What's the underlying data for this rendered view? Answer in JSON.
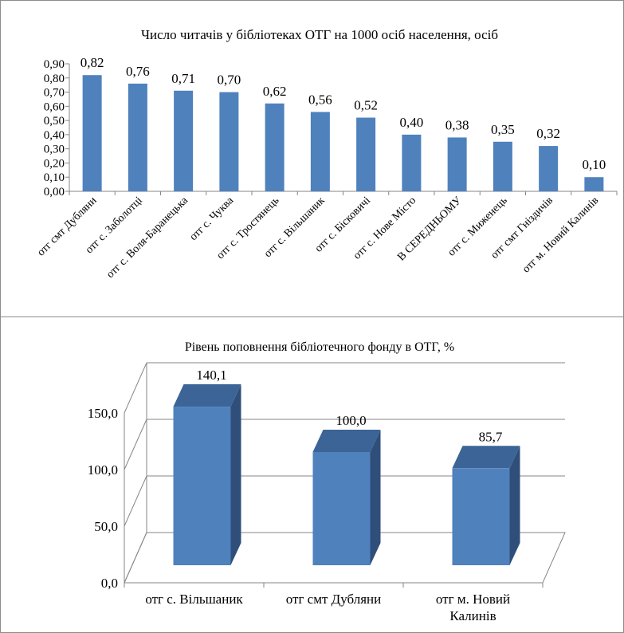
{
  "chart_data": [
    {
      "type": "bar",
      "title": "Число читачів у бібліотеках ОТГ на 1000 осіб населення, осіб",
      "categories": [
        "отг смт Дубляни",
        "отг с. Заболотці",
        "отг с. Воля-Баранецька",
        "отг с. Чуква",
        "отг с. Тростянець",
        "отг с. Вільшаник",
        "отг с. Бісковичі",
        "отг с. Нове Місто",
        "В СЕРЕДНЬОМУ",
        "отг с. Миженець",
        "отг смт Гніздичів",
        "отг м. Новий Калинів"
      ],
      "values": [
        0.82,
        0.76,
        0.71,
        0.7,
        0.62,
        0.56,
        0.52,
        0.4,
        0.38,
        0.35,
        0.32,
        0.1
      ],
      "value_labels": [
        "0,82",
        "0,76",
        "0,71",
        "0,70",
        "0,62",
        "0,56",
        "0,52",
        "0,40",
        "0,38",
        "0,35",
        "0,32",
        "0,10"
      ],
      "color": "#4f81bd",
      "ylim": [
        0,
        0.9
      ],
      "yticks": [
        {
          "value": 0,
          "label": "0,00"
        },
        {
          "value": 0.1,
          "label": "0,10"
        },
        {
          "value": 0.2,
          "label": "0,20"
        },
        {
          "value": 0.3,
          "label": "0,30"
        },
        {
          "value": 0.4,
          "label": "0,40"
        },
        {
          "value": 0.5,
          "label": "0,50"
        },
        {
          "value": 0.6,
          "label": "0,60"
        },
        {
          "value": 0.7,
          "label": "0,70"
        },
        {
          "value": 0.8,
          "label": "0,80"
        },
        {
          "value": 0.9,
          "label": "0,90"
        }
      ],
      "grid": false
    },
    {
      "type": "bar3d",
      "title": "Рівень поповнення бібліотечного фонду в ОТГ, %",
      "categories": [
        "отг с. Вільшаник",
        "отг смт Дубляни",
        "отг м. Новий Калинів"
      ],
      "values": [
        140.1,
        100.0,
        85.7
      ],
      "value_labels": [
        "140,1",
        "100,0",
        "85,7"
      ],
      "color": "#4f81bd",
      "ylim": [
        0,
        150
      ],
      "yticks": [
        {
          "value": 0,
          "label": "0,0"
        },
        {
          "value": 50,
          "label": "50,0"
        },
        {
          "value": 100,
          "label": "100,0"
        },
        {
          "value": 150,
          "label": "150,0"
        }
      ],
      "grid": true
    }
  ]
}
